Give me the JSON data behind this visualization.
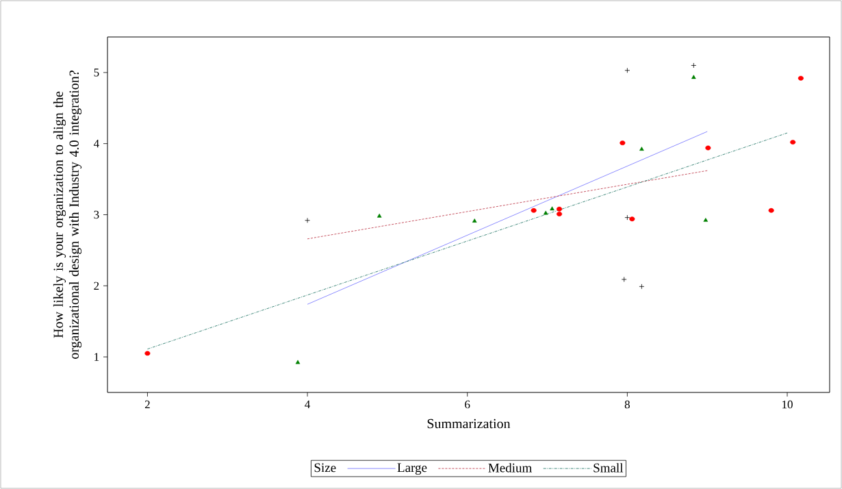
{
  "chart_data": {
    "type": "scatter",
    "xlabel": "Summarization",
    "ylabel": "How likely is your organization to align the organizational design with Industry 4.0 integration?",
    "legend_title": "Size",
    "legend": "bottom",
    "grid": false,
    "xlim": [
      1.5,
      10.53
    ],
    "ylim": [
      0.5,
      5.5
    ],
    "xticks": [
      2,
      4,
      6,
      8,
      10
    ],
    "yticks": [
      1,
      2,
      3,
      4,
      5
    ],
    "series": [
      {
        "marker": "cross",
        "color": "#000000",
        "x": [
          4.0,
          8.0,
          8.83,
          8.0,
          7.96,
          8.18
        ],
        "values": [
          2.92,
          5.03,
          5.1,
          2.96,
          2.09,
          1.99
        ]
      },
      {
        "marker": "circle",
        "color": "#ff0000",
        "x": [
          2.0,
          6.83,
          7.15,
          7.15,
          7.94,
          8.06,
          9.01,
          9.8,
          10.07,
          10.17
        ],
        "values": [
          1.05,
          3.06,
          3.08,
          3.01,
          4.01,
          2.94,
          3.94,
          3.06,
          4.02,
          4.92
        ]
      },
      {
        "marker": "triangle",
        "color": "#008000",
        "x": [
          3.88,
          4.9,
          6.09,
          6.98,
          7.06,
          8.18,
          8.83,
          8.98
        ],
        "values": [
          0.92,
          2.98,
          2.91,
          3.02,
          3.08,
          3.92,
          4.93,
          2.92
        ]
      },
      {
        "type": "line",
        "name": "Large",
        "color": "#7f7fff",
        "line_style": "solid",
        "x": [
          4.0,
          9.0
        ],
        "values": [
          1.74,
          4.17
        ]
      },
      {
        "type": "line",
        "name": "Medium",
        "color": "#c0404f",
        "line_style": "dashed",
        "x": [
          4.0,
          9.0
        ],
        "values": [
          2.66,
          3.62
        ]
      },
      {
        "type": "line",
        "name": "Small",
        "color": "#2e7d6e",
        "line_style": "dashdot",
        "x": [
          2.0,
          10.0
        ],
        "values": [
          1.11,
          4.15
        ]
      }
    ]
  }
}
